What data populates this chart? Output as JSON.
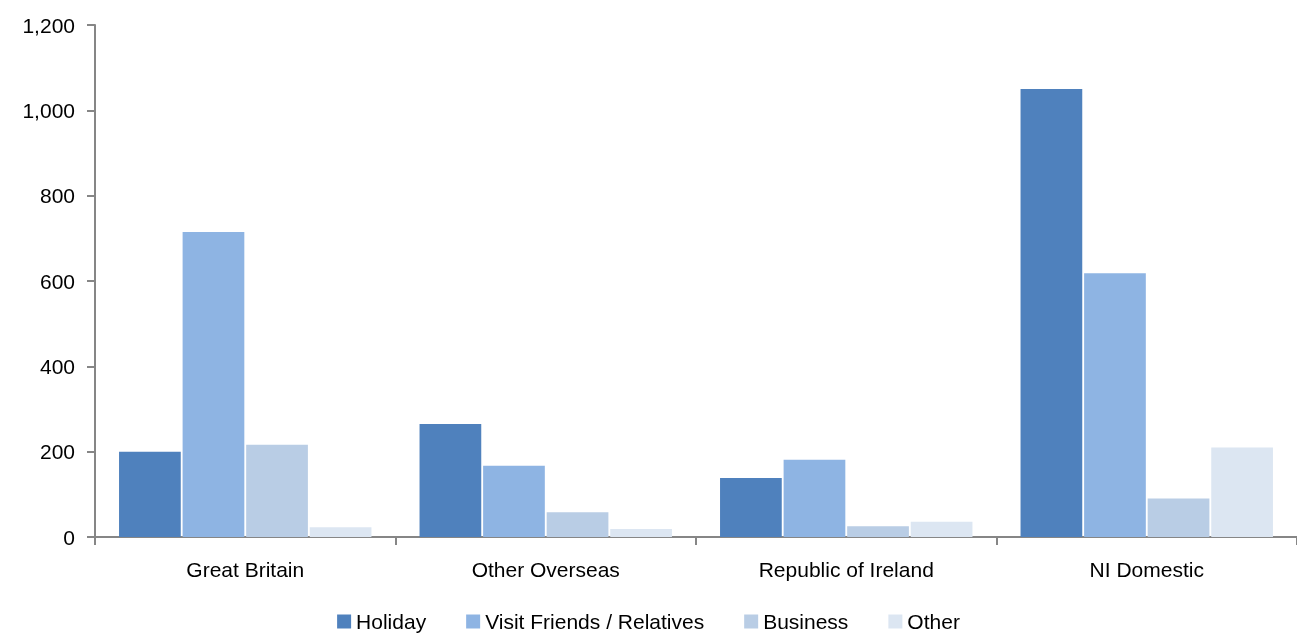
{
  "chart_data": {
    "type": "bar",
    "categories": [
      "Great Britain",
      "Other Overseas",
      "Republic of Ireland",
      "NI Domestic"
    ],
    "series": [
      {
        "name": "Holiday",
        "color": "#4f81bd",
        "values": [
          200,
          265,
          138,
          1050
        ]
      },
      {
        "name": "Visit Friends / Relatives",
        "color": "#8eb4e3",
        "values": [
          715,
          167,
          181,
          618
        ]
      },
      {
        "name": "Business",
        "color": "#b9cde5",
        "values": [
          216,
          58,
          25,
          90
        ]
      },
      {
        "name": "Other",
        "color": "#dce6f2",
        "values": [
          23,
          19,
          36,
          210
        ]
      }
    ],
    "ylim": [
      0,
      1200
    ],
    "yticks": [
      0,
      200,
      400,
      600,
      800,
      {
        "value": 1000,
        "label": "1,000"
      },
      {
        "value": 1200,
        "label": "1,200"
      }
    ],
    "grid": false,
    "legend": "bottom"
  }
}
